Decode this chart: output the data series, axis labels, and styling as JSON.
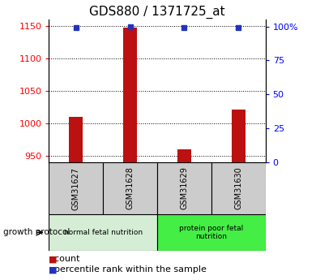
{
  "title": "GDS880 / 1371725_at",
  "samples": [
    "GSM31627",
    "GSM31628",
    "GSM31629",
    "GSM31630"
  ],
  "count_values": [
    1010,
    1148,
    960,
    1022
  ],
  "percentile_values": [
    99,
    100,
    99,
    99
  ],
  "ylim_left": [
    940,
    1160
  ],
  "yticks_left": [
    950,
    1000,
    1050,
    1100,
    1150
  ],
  "yticks_right": [
    0,
    25,
    50,
    75,
    100
  ],
  "ytick_right_labels": [
    "0",
    "25",
    "50",
    "75",
    "100%"
  ],
  "bar_color": "#bb1111",
  "dot_color": "#2233bb",
  "group1_label": "normal fetal nutrition",
  "group2_label": "protein poor fetal\nnutrition",
  "group1_color": "#d4edd4",
  "group2_color": "#44ee44",
  "sample_box_color": "#cccccc",
  "protocol_label": "growth protocol",
  "legend_count_label": "count",
  "legend_pct_label": "percentile rank within the sample",
  "title_fontsize": 11,
  "tick_fontsize": 8,
  "bar_width": 0.25,
  "bg_color": "#ffffff"
}
